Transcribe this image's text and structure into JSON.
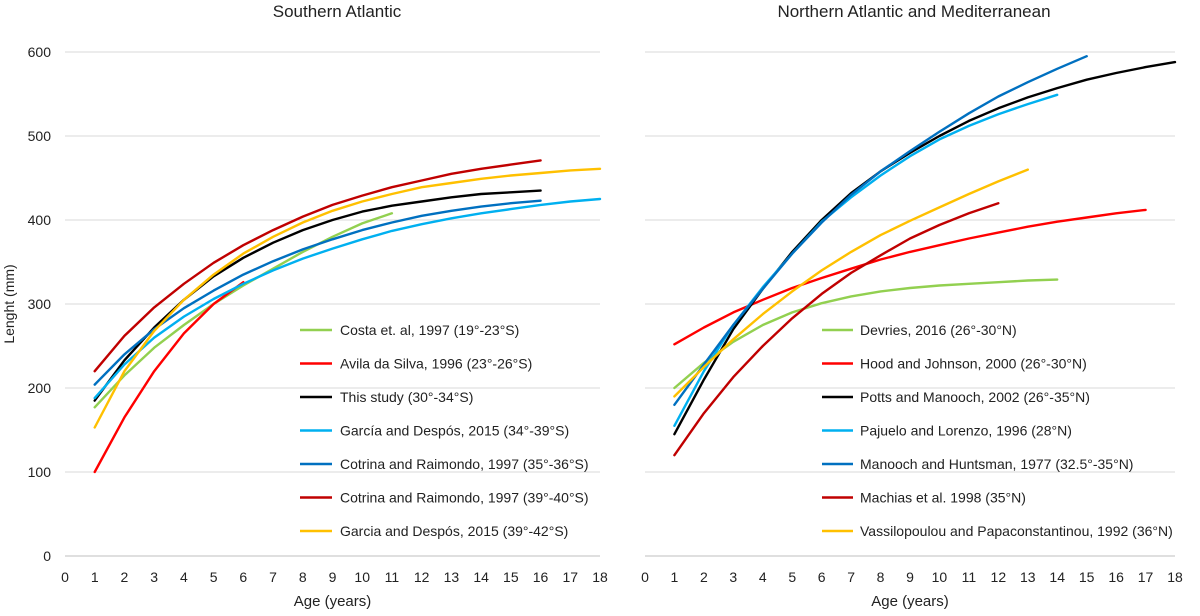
{
  "chart_data": [
    {
      "type": "line",
      "title": "Southern Atlantic",
      "ylabel": "Lenght (mm)",
      "xlabel": "Age (years)",
      "xlim": [
        0,
        18
      ],
      "ylim": [
        0,
        600
      ],
      "xticks": [
        0,
        1,
        2,
        3,
        4,
        5,
        6,
        7,
        8,
        9,
        10,
        11,
        12,
        13,
        14,
        15,
        16,
        17,
        18
      ],
      "yticks": [
        0,
        100,
        200,
        300,
        400,
        500,
        600
      ],
      "grid": "horizontal",
      "legend_position": "bottom-right",
      "series": [
        {
          "name": "Costa et. al, 1997 (19°-23°S)",
          "color": "#92D050",
          "x": [
            1,
            2,
            3,
            4,
            5,
            6,
            7,
            8,
            9,
            10,
            11
          ],
          "y": [
            177,
            215,
            248,
            275,
            300,
            322,
            342,
            362,
            380,
            396,
            408
          ]
        },
        {
          "name": "Avila da Silva, 1996 (23°-26°S)",
          "color": "#FF0000",
          "x": [
            1,
            2,
            3,
            4,
            5,
            6
          ],
          "y": [
            100,
            165,
            220,
            265,
            300,
            326
          ]
        },
        {
          "name": "This study (30°-34°S)",
          "color": "#000000",
          "x": [
            1,
            2,
            3,
            4,
            5,
            6,
            7,
            8,
            9,
            10,
            11,
            12,
            13,
            14,
            15,
            16
          ],
          "y": [
            185,
            233,
            272,
            305,
            333,
            355,
            373,
            388,
            400,
            410,
            417,
            422,
            427,
            431,
            433,
            435
          ]
        },
        {
          "name": "García and Despós, 2015 (34°-39°S)",
          "color": "#00B0F0",
          "x": [
            1,
            2,
            3,
            4,
            5,
            6,
            7,
            8,
            9,
            10,
            11,
            12,
            13,
            14,
            15,
            16,
            17,
            18
          ],
          "y": [
            188,
            228,
            260,
            285,
            306,
            324,
            340,
            354,
            366,
            377,
            387,
            395,
            402,
            408,
            413,
            418,
            422,
            425
          ]
        },
        {
          "name": "Cotrina and Raimondo, 1997 (35°-36°S)",
          "color": "#0070C0",
          "x": [
            1,
            2,
            3,
            4,
            5,
            6,
            7,
            8,
            9,
            10,
            11,
            12,
            13,
            14,
            15,
            16
          ],
          "y": [
            204,
            240,
            270,
            295,
            316,
            335,
            351,
            365,
            377,
            388,
            397,
            405,
            411,
            416,
            420,
            423
          ]
        },
        {
          "name": "Cotrina and Raimondo, 1997 (39°-40°S)",
          "color": "#C00000",
          "x": [
            1,
            2,
            3,
            4,
            5,
            6,
            7,
            8,
            9,
            10,
            11,
            12,
            13,
            14,
            15,
            16
          ],
          "y": [
            220,
            262,
            296,
            324,
            349,
            370,
            388,
            404,
            418,
            429,
            439,
            447,
            455,
            461,
            466,
            471
          ]
        },
        {
          "name": "Garcia and Despós, 2015 (39°-42°S)",
          "color": "#FFC000",
          "x": [
            1,
            2,
            3,
            4,
            5,
            6,
            7,
            8,
            9,
            10,
            11,
            12,
            13,
            14,
            15,
            16,
            17,
            18
          ],
          "y": [
            153,
            220,
            268,
            305,
            335,
            360,
            380,
            397,
            411,
            422,
            431,
            439,
            444,
            449,
            453,
            456,
            459,
            461
          ]
        }
      ]
    },
    {
      "type": "line",
      "title": "Northern Atlantic and Mediterranean",
      "ylabel": "",
      "xlabel": "Age (years)",
      "xlim": [
        0,
        18
      ],
      "ylim": [
        0,
        600
      ],
      "xticks": [
        0,
        1,
        2,
        3,
        4,
        5,
        6,
        7,
        8,
        9,
        10,
        11,
        12,
        13,
        14,
        15,
        16,
        17,
        18
      ],
      "grid": "horizontal",
      "legend_position": "bottom-right",
      "series": [
        {
          "name": "Devries, 2016 (26°-30°N)",
          "color": "#92D050",
          "x": [
            1,
            2,
            3,
            4,
            5,
            6,
            7,
            8,
            9,
            10,
            11,
            12,
            13,
            14
          ],
          "y": [
            200,
            230,
            255,
            275,
            290,
            301,
            309,
            315,
            319,
            322,
            324,
            326,
            328,
            329
          ]
        },
        {
          "name": "Hood and Johnson, 2000 (26°-30°N)",
          "color": "#FF0000",
          "x": [
            1,
            2,
            3,
            4,
            5,
            6,
            7,
            8,
            9,
            10,
            11,
            12,
            13,
            14,
            15,
            16,
            17
          ],
          "y": [
            252,
            272,
            290,
            305,
            319,
            331,
            342,
            353,
            362,
            370,
            378,
            385,
            392,
            398,
            403,
            408,
            412
          ]
        },
        {
          "name": "Potts and Manooch, 2002 (26°-35°N)",
          "color": "#000000",
          "x": [
            1,
            2,
            3,
            4,
            5,
            6,
            7,
            8,
            9,
            10,
            11,
            12,
            13,
            14,
            15,
            16,
            17,
            18
          ],
          "y": [
            145,
            210,
            270,
            318,
            362,
            400,
            432,
            458,
            480,
            500,
            518,
            533,
            546,
            557,
            567,
            575,
            582,
            588
          ]
        },
        {
          "name": "Pajuelo and Lorenzo, 1996 (28°N)",
          "color": "#00B0F0",
          "x": [
            1,
            2,
            3,
            4,
            5,
            6,
            7,
            8,
            9,
            10,
            11,
            12,
            13,
            14
          ],
          "y": [
            155,
            220,
            275,
            320,
            360,
            398,
            427,
            453,
            476,
            496,
            512,
            526,
            538,
            549
          ]
        },
        {
          "name": "Manooch and Huntsman, 1977 (32.5°-35°N)",
          "color": "#0070C0",
          "x": [
            1,
            2,
            3,
            4,
            5,
            6,
            7,
            8,
            9,
            10,
            11,
            12,
            13,
            14,
            15
          ],
          "y": [
            180,
            228,
            275,
            318,
            360,
            397,
            430,
            458,
            482,
            505,
            527,
            547,
            564,
            580,
            595
          ]
        },
        {
          "name": "Machias et al. 1998 (35°N)",
          "color": "#C00000",
          "x": [
            1,
            2,
            3,
            4,
            5,
            6,
            7,
            8,
            9,
            10,
            11,
            12
          ],
          "y": [
            120,
            170,
            213,
            250,
            283,
            312,
            337,
            358,
            378,
            394,
            408,
            420
          ]
        },
        {
          "name": "Vassilopoulou and Papaconstantinou, 1992 (36°N)",
          "color": "#FFC000",
          "x": [
            1,
            2,
            3,
            4,
            5,
            6,
            7,
            8,
            9,
            10,
            11,
            12,
            13
          ],
          "y": [
            190,
            225,
            258,
            288,
            315,
            340,
            362,
            382,
            399,
            415,
            431,
            446,
            460
          ]
        }
      ]
    }
  ]
}
